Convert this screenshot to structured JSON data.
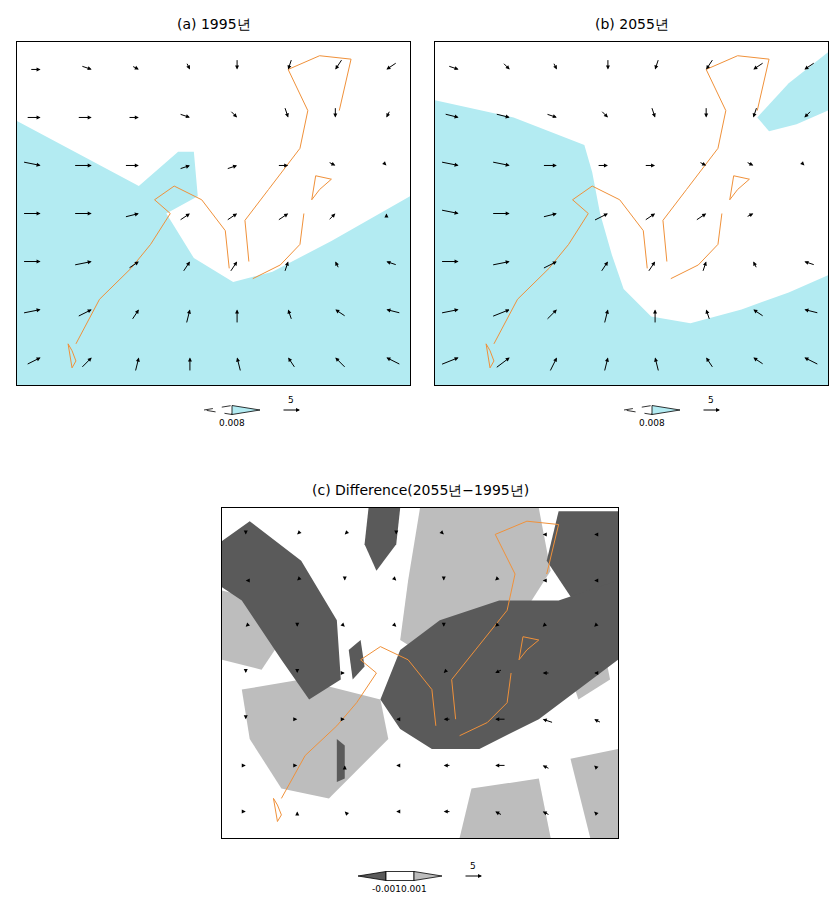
{
  "coastline": {
    "x": [
      15,
      21,
      29,
      34,
      39,
      35,
      40,
      47,
      53,
      54,
      null,
      59,
      58,
      64,
      72,
      74,
      69,
      77,
      85,
      82,
      null,
      60,
      67,
      72,
      73,
      null,
      75,
      77,
      80,
      76,
      75,
      null,
      13,
      14,
      15,
      14,
      13
    ],
    "y": [
      12,
      25,
      34,
      41,
      50,
      54,
      58,
      54,
      45,
      34,
      null,
      36,
      48,
      57,
      69,
      80,
      92,
      96,
      95,
      80,
      null,
      31,
      35,
      41,
      50,
      null,
      54,
      57,
      60,
      61,
      54,
      null,
      12,
      10,
      7,
      5,
      12
    ]
  },
  "chart_data": [
    {
      "type": "vector_map",
      "title": "(a) 1995년",
      "xlim": [
        0,
        100
      ],
      "ylim": [
        0,
        100
      ],
      "tick_labels": false,
      "grid": false,
      "colorbar": {
        "ticks": [
          0.008
        ],
        "colors": [
          "#ffffff",
          "#b3ebf2"
        ]
      },
      "reference_vector": 5,
      "shading": [
        {
          "bin": 1,
          "x": [
            0,
            31,
            41,
            45,
            46,
            38,
            45,
            55,
            65,
            80,
            100,
            100,
            0
          ],
          "y": [
            77,
            58,
            68,
            68,
            55,
            50,
            37,
            30,
            33,
            42,
            55,
            0,
            0
          ]
        }
      ],
      "vectors": {
        "x": [
          6,
          19,
          31,
          44,
          56,
          69,
          81,
          94
        ],
        "y": [
          8,
          22,
          36,
          50,
          64,
          78,
          92
        ],
        "u": [
          [
            4,
            3,
            1,
            0,
            -1,
            -2,
            -3,
            -4
          ],
          [
            5,
            4,
            2,
            1,
            0,
            -1,
            -3,
            -4
          ],
          [
            5,
            5,
            3,
            2,
            2,
            1,
            -1,
            -3
          ],
          [
            5,
            5,
            4,
            3,
            3,
            3,
            2,
            0
          ],
          [
            5,
            5,
            4,
            3,
            3,
            3,
            2,
            1
          ],
          [
            4,
            4,
            3,
            3,
            2,
            1,
            0,
            -1
          ],
          [
            3,
            3,
            2,
            1,
            0,
            -1,
            -2,
            -3
          ]
        ],
        "v": [
          [
            2,
            3,
            4,
            4,
            4,
            3,
            3,
            2
          ],
          [
            1,
            2,
            3,
            4,
            4,
            3,
            2,
            1
          ],
          [
            0,
            1,
            2,
            3,
            3,
            3,
            2,
            1
          ],
          [
            0,
            0,
            1,
            2,
            2,
            2,
            2,
            1
          ],
          [
            -1,
            0,
            0,
            1,
            1,
            0,
            -1,
            -1
          ],
          [
            0,
            0,
            0,
            -1,
            -2,
            -3,
            -3,
            -2
          ],
          [
            0,
            -1,
            -1,
            -2,
            -3,
            -3,
            -3,
            -2
          ]
        ]
      }
    },
    {
      "type": "vector_map",
      "title": "(b) 2055년",
      "xlim": [
        0,
        100
      ],
      "ylim": [
        0,
        100
      ],
      "tick_labels": false,
      "grid": false,
      "colorbar": {
        "ticks": [
          0.008
        ],
        "colors": [
          "#ffffff",
          "#b3ebf2"
        ]
      },
      "reference_vector": 5,
      "shading": [
        {
          "bin": 1,
          "x": [
            0,
            20,
            38,
            40,
            42,
            45,
            48,
            55,
            65,
            78,
            90,
            100,
            100,
            0
          ],
          "y": [
            83,
            78,
            70,
            62,
            50,
            38,
            28,
            20,
            18,
            22,
            27,
            32,
            0,
            0
          ]
        },
        {
          "bin": 1,
          "x": [
            82,
            90,
            100,
            100,
            92,
            85
          ],
          "y": [
            78,
            88,
            97,
            80,
            76,
            74
          ]
        }
      ],
      "vectors": {
        "x": [
          6,
          19,
          31,
          44,
          56,
          69,
          81,
          94
        ],
        "y": [
          8,
          22,
          36,
          50,
          64,
          78,
          92
        ],
        "u": [
          [
            5,
            4,
            2,
            1,
            -1,
            -2,
            -3,
            -4
          ],
          [
            5,
            5,
            3,
            1,
            0,
            -1,
            -3,
            -4
          ],
          [
            5,
            5,
            4,
            2,
            2,
            1,
            -1,
            -3
          ],
          [
            5,
            5,
            4,
            4,
            3,
            3,
            2,
            0
          ],
          [
            5,
            5,
            4,
            3,
            3,
            2,
            2,
            1
          ],
          [
            4,
            4,
            3,
            2,
            1,
            0,
            -1,
            -2
          ],
          [
            3,
            2,
            1,
            0,
            -1,
            -2,
            -3,
            -3
          ]
        ],
        "v": [
          [
            2,
            3,
            4,
            4,
            4,
            3,
            2,
            2
          ],
          [
            1,
            2,
            3,
            4,
            4,
            3,
            2,
            1
          ],
          [
            0,
            1,
            2,
            3,
            3,
            3,
            2,
            1
          ],
          [
            -1,
            0,
            1,
            2,
            2,
            2,
            1,
            0
          ],
          [
            -1,
            -1,
            0,
            0,
            0,
            -1,
            -1,
            -1
          ],
          [
            -1,
            -1,
            -1,
            -2,
            -3,
            -3,
            -3,
            -2
          ],
          [
            -1,
            -2,
            -2,
            -3,
            -3,
            -3,
            -2,
            -2
          ]
        ]
      }
    },
    {
      "type": "vector_map",
      "title": "(c) Difference(2055년−1995년)",
      "xlim": [
        0,
        100
      ],
      "ylim": [
        0,
        100
      ],
      "tick_labels": false,
      "grid": false,
      "colorbar": {
        "ticks": [
          -0.001,
          0.001
        ],
        "colors": [
          "#5a5a5a",
          "#ffffff",
          "#bdbdbd"
        ]
      },
      "reference_vector": 5,
      "shading": [
        {
          "bin": 2,
          "x": [
            50,
            80,
            83,
            75,
            65,
            53,
            45,
            47
          ],
          "y": [
            100,
            100,
            81,
            66,
            60,
            54,
            60,
            78
          ]
        },
        {
          "bin": 2,
          "x": [
            0,
            10,
            15,
            10,
            0
          ],
          "y": [
            75,
            72,
            60,
            51,
            54
          ]
        },
        {
          "bin": 2,
          "x": [
            5,
            20,
            40,
            42,
            27,
            15,
            7
          ],
          "y": [
            45,
            48,
            42,
            30,
            12,
            15,
            30
          ]
        },
        {
          "bin": 2,
          "x": [
            88,
            100,
            100,
            93
          ],
          "y": [
            24,
            27,
            0,
            0
          ]
        },
        {
          "bin": 2,
          "x": [
            63,
            80,
            83,
            60
          ],
          "y": [
            15,
            18,
            0,
            0
          ]
        },
        {
          "bin": 2,
          "x": [
            85,
            95,
            98,
            90
          ],
          "y": [
            60,
            66,
            48,
            42
          ]
        },
        {
          "bin": 0,
          "x": [
            0,
            7,
            20,
            29,
            30,
            22,
            15,
            5,
            0
          ],
          "y": [
            90,
            96,
            84,
            66,
            48,
            42,
            54,
            72,
            76
          ]
        },
        {
          "bin": 0,
          "x": [
            37,
            45,
            44,
            39,
            36
          ],
          "y": [
            100,
            100,
            89,
            81,
            89
          ]
        },
        {
          "bin": 0,
          "x": [
            85,
            100,
            100,
            92,
            82
          ],
          "y": [
            99,
            99,
            72,
            66,
            84
          ]
        },
        {
          "bin": 0,
          "x": [
            32,
            35,
            36,
            33
          ],
          "y": [
            57,
            60,
            52,
            48
          ]
        },
        {
          "bin": 0,
          "x": [
            40,
            45,
            55,
            70,
            85,
            100,
            100,
            90,
            80,
            65,
            53,
            45
          ],
          "y": [
            42,
            57,
            66,
            72,
            72,
            78,
            54,
            45,
            36,
            27,
            27,
            33
          ]
        },
        {
          "bin": 0,
          "x": [
            29,
            31,
            31,
            29
          ],
          "y": [
            30,
            28,
            18,
            17
          ]
        }
      ],
      "vectors": {
        "x": [
          6,
          19,
          31,
          44,
          56,
          69,
          81,
          94
        ],
        "y": [
          8,
          22,
          36,
          50,
          64,
          78,
          92
        ],
        "u": [
          [
            1,
            0,
            -1,
            -1,
            -2,
            -2,
            -2,
            -1
          ],
          [
            1,
            1,
            0,
            -1,
            -2,
            -3,
            -2,
            -1
          ],
          [
            0,
            1,
            1,
            -1,
            -2,
            -3,
            -3,
            -2
          ],
          [
            0,
            0,
            1,
            0,
            -1,
            -2,
            -2,
            -1
          ],
          [
            -1,
            0,
            1,
            1,
            0,
            -1,
            -1,
            -1
          ],
          [
            -1,
            -1,
            0,
            1,
            0,
            -1,
            -1,
            -1
          ],
          [
            0,
            -1,
            -1,
            0,
            1,
            0,
            -1,
            -1
          ]
        ],
        "v": [
          [
            0,
            1,
            1,
            0,
            0,
            1,
            1,
            1
          ],
          [
            0,
            0,
            1,
            0,
            0,
            0,
            1,
            1
          ],
          [
            -1,
            0,
            0,
            0,
            0,
            0,
            1,
            1
          ],
          [
            -1,
            -1,
            0,
            0,
            -1,
            -1,
            0,
            0
          ],
          [
            -1,
            -1,
            -1,
            -1,
            -1,
            -1,
            -1,
            -1
          ],
          [
            0,
            -1,
            -1,
            -1,
            -1,
            -1,
            0,
            0
          ],
          [
            -1,
            -1,
            -1,
            -1,
            -1,
            0,
            0,
            0
          ]
        ]
      }
    }
  ]
}
